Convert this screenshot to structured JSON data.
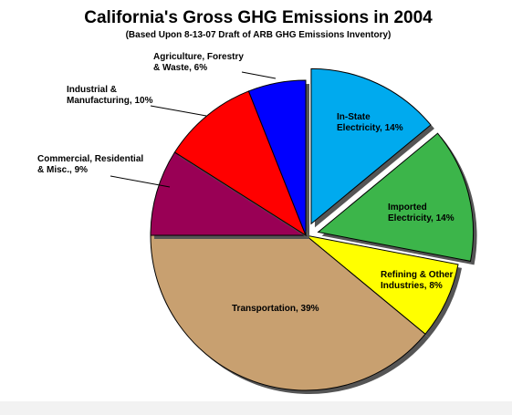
{
  "chart_data": {
    "type": "pie",
    "title": "California's Gross GHG Emissions in 2004",
    "subtitle": "(Based Upon 8-13-07 Draft of ARB GHG Emissions Inventory)",
    "unit": "%",
    "slices": [
      {
        "label": "In-State Electricity, 14%",
        "lines": [
          "In-State",
          "Electricity, 14%"
        ],
        "value": 14,
        "color": "#00aaee",
        "exploded": true
      },
      {
        "label": "Imported Electricity, 14%",
        "lines": [
          "Imported",
          "Electricity, 14%"
        ],
        "value": 14,
        "color": "#3cb54a",
        "exploded": true
      },
      {
        "label": "Refining & Other Industries, 8%",
        "lines": [
          "Refining & Other",
          "Industries, 8%"
        ],
        "value": 8,
        "color": "#ffff00",
        "exploded": false
      },
      {
        "label": "Transportation, 39%",
        "lines": [
          "Transportation, 39%"
        ],
        "value": 39,
        "color": "#c8a070",
        "exploded": false
      },
      {
        "label": "Commercial, Residential & Misc., 9%",
        "lines": [
          "Commercial, Residential",
          "& Misc., 9%"
        ],
        "value": 9,
        "color": "#990055",
        "exploded": false
      },
      {
        "label": "Industrial & Manufacturing, 10%",
        "lines": [
          "Industrial &",
          "Manufacturing, 10%"
        ],
        "value": 10,
        "color": "#ff0000",
        "exploded": false
      },
      {
        "label": "Agriculture, Forestry & Waste, 6%",
        "lines": [
          "Agriculture, Forestry",
          "& Waste, 6%"
        ],
        "value": 6,
        "color": "#0000ff",
        "exploded": false
      }
    ]
  }
}
